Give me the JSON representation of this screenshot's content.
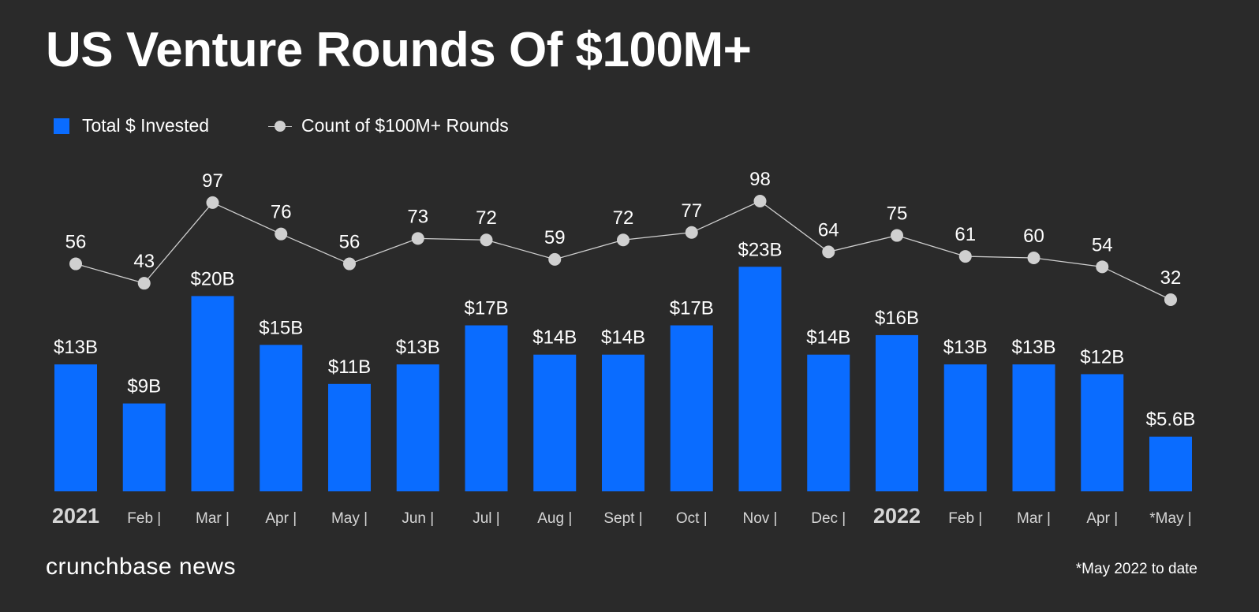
{
  "chart_data": {
    "type": "bar+line",
    "title": "US Venture Rounds Of $100M+",
    "categories": [
      "2021",
      "Feb |",
      "Mar |",
      "Apr |",
      "May |",
      "Jun |",
      "Jul |",
      "Aug |",
      "Sept |",
      "Oct |",
      "Nov |",
      "Dec |",
      "2022",
      "Feb |",
      "Mar |",
      "Apr |",
      "*May |"
    ],
    "series": [
      {
        "name": "Total $ Invested",
        "type": "bar",
        "color": "#0a6cff",
        "unit": "$B",
        "values": [
          13,
          9,
          20,
          15,
          11,
          13,
          17,
          14,
          14,
          17,
          23,
          14,
          16,
          13,
          13,
          12,
          5.6
        ],
        "labels": [
          "$13B",
          "$9B",
          "$20B",
          "$15B",
          "$11B",
          "$13B",
          "$17B",
          "$14B",
          "$14B",
          "$17B",
          "$23B",
          "$14B",
          "$16B",
          "$13B",
          "$13B",
          "$12B",
          "$5.6B"
        ]
      },
      {
        "name": "Count of $100M+ Rounds",
        "type": "line",
        "color": "#d0d0d0",
        "values": [
          56,
          43,
          97,
          76,
          56,
          73,
          72,
          59,
          72,
          77,
          98,
          64,
          75,
          61,
          60,
          54,
          32
        ]
      }
    ],
    "legend": "top-left",
    "grid": false
  },
  "brand": "crunchbase news",
  "footnote": "*May 2022 to date"
}
